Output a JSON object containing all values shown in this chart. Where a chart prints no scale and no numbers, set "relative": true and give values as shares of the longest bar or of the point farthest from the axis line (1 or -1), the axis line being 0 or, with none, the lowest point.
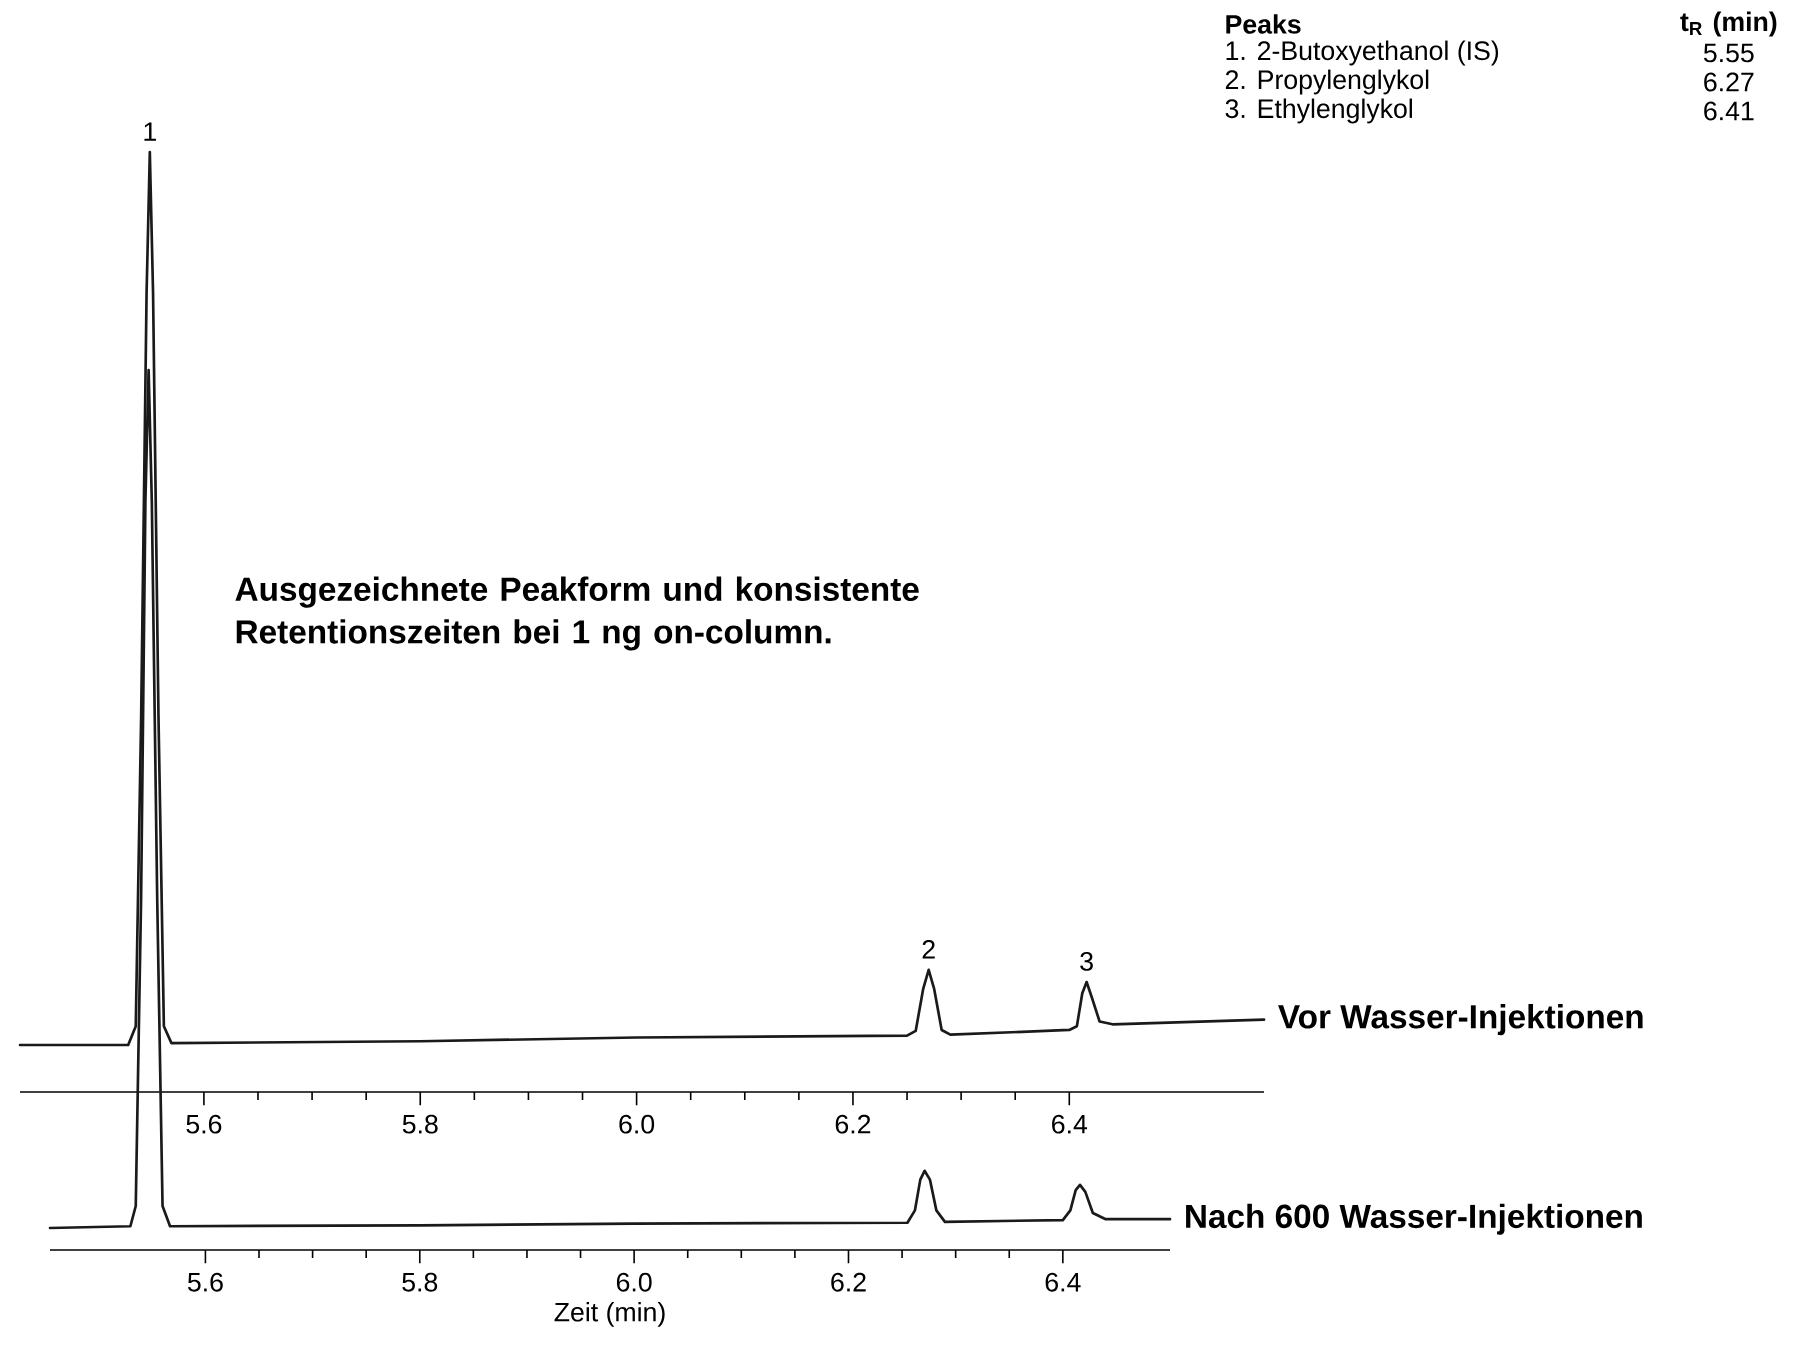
{
  "chart_data": [
    {
      "type": "line",
      "relative": true,
      "x": [
        5.43,
        5.53,
        5.537,
        5.542,
        5.547,
        5.55,
        5.553,
        5.558,
        5.563,
        5.57,
        5.8,
        6.0,
        6.25,
        6.258,
        6.265,
        6.27,
        6.275,
        6.282,
        6.29,
        6.4,
        6.407,
        6.412,
        6.416,
        6.421,
        6.428,
        6.44,
        6.58
      ],
      "series": [
        {
          "name": "Vor Wasser-Injektionen",
          "color": "#1a1a1a",
          "values": [
            0.05,
            0.05,
            0.07,
            0.4,
            0.85,
            1.0,
            0.85,
            0.4,
            0.07,
            0.052,
            0.054,
            0.058,
            0.06,
            0.065,
            0.11,
            0.13,
            0.11,
            0.066,
            0.061,
            0.066,
            0.07,
            0.105,
            0.117,
            0.1,
            0.075,
            0.072,
            0.077
          ]
        }
      ],
      "xlim": [
        5.43,
        6.58
      ],
      "xticks": [
        5.6,
        5.8,
        {
          "value": 6,
          "label": "6.0"
        },
        6.2,
        6.4
      ],
      "annotations": [
        "Ausgezeichnete Peakform und konsistente Retentionszeiten bei 1 ng on-column.",
        "Peaks",
        "t$_{R}$ (min)",
        "1. 2-Butoxyethanol (IS)",
        "5.55",
        "2. Propylenglykol",
        "6.27",
        "3. Ethylenglykol",
        "6.41",
        {
          "text": "1",
          "x": 5.55,
          "y": 1.0
        },
        {
          "text": "2",
          "x": 6.27,
          "y": 0.13
        },
        {
          "text": "3",
          "x": 6.416,
          "y": 0.117
        }
      ]
    },
    {
      "type": "line",
      "relative": true,
      "x": [
        5.455,
        5.53,
        5.535,
        5.54,
        5.544,
        5.547,
        5.55,
        5.555,
        5.56,
        5.567,
        5.8,
        6.0,
        6.255,
        6.262,
        6.267,
        6.271,
        6.276,
        6.282,
        6.29,
        6.4,
        6.407,
        6.412,
        6.416,
        6.421,
        6.428,
        6.44,
        6.5
      ],
      "series": [
        {
          "name": "Nach 600 Wasser-Injektionen",
          "color": "#1a1a1a",
          "values": [
            0.025,
            0.027,
            0.05,
            0.4,
            0.85,
            1.0,
            0.85,
            0.4,
            0.05,
            0.027,
            0.028,
            0.03,
            0.031,
            0.045,
            0.08,
            0.09,
            0.08,
            0.045,
            0.032,
            0.034,
            0.045,
            0.068,
            0.074,
            0.066,
            0.042,
            0.035,
            0.035
          ]
        }
      ],
      "xlim": [
        5.455,
        6.5
      ],
      "xticks": [
        5.6,
        5.8,
        {
          "value": 6,
          "label": "6.0"
        },
        6.2,
        6.4
      ],
      "xlabel": "Zeit (min)"
    }
  ]
}
